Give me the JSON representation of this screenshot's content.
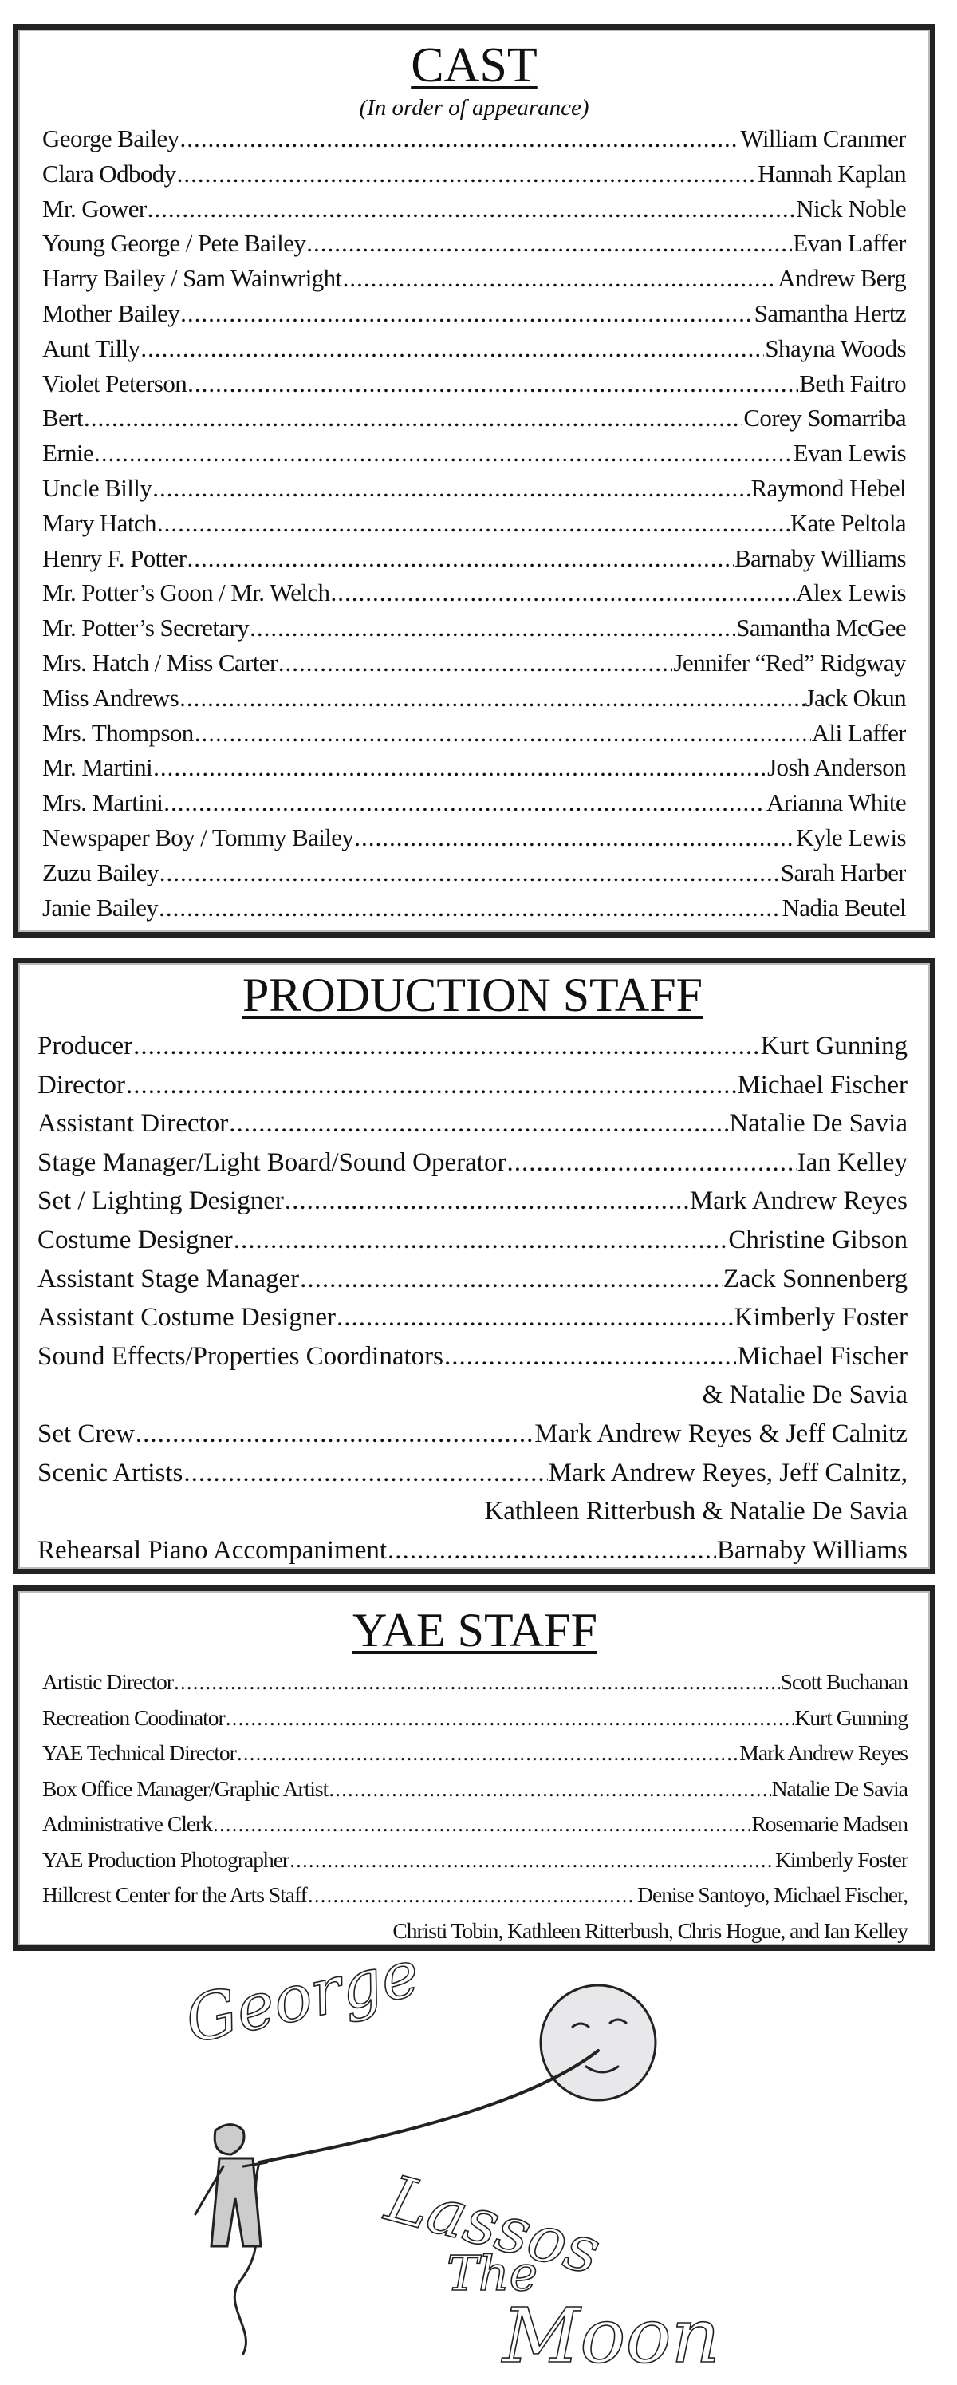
{
  "cast": {
    "title": "CAST",
    "subtitle": "(In order of appearance)",
    "rows": [
      {
        "role": "George Bailey",
        "actor": "William Cranmer"
      },
      {
        "role": "Clara Odbody",
        "actor": "Hannah Kaplan"
      },
      {
        "role": "Mr. Gower",
        "actor": "Nick Noble"
      },
      {
        "role": "Young George / Pete Bailey",
        "actor": "Evan Laffer"
      },
      {
        "role": "Harry Bailey / Sam Wainwright",
        "actor": "Andrew Berg"
      },
      {
        "role": "Mother Bailey",
        "actor": "Samantha Hertz"
      },
      {
        "role": "Aunt Tilly",
        "actor": "Shayna Woods"
      },
      {
        "role": "Violet Peterson",
        "actor": "Beth Faitro"
      },
      {
        "role": "Bert",
        "actor": "Corey Somarriba"
      },
      {
        "role": "Ernie",
        "actor": "Evan Lewis"
      },
      {
        "role": "Uncle Billy",
        "actor": "Raymond Hebel"
      },
      {
        "role": "Mary Hatch",
        "actor": "Kate Peltola"
      },
      {
        "role": "Henry F. Potter",
        "actor": "Barnaby Williams"
      },
      {
        "role": "Mr. Potter’s Goon / Mr. Welch",
        "actor": "Alex Lewis"
      },
      {
        "role": "Mr. Potter’s Secretary",
        "actor": "Samantha McGee"
      },
      {
        "role": "Mrs. Hatch / Miss Carter",
        "actor": "Jennifer “Red” Ridgway"
      },
      {
        "role": "Miss Andrews",
        "actor": "Jack Okun"
      },
      {
        "role": "Mrs. Thompson",
        "actor": "Ali Laffer"
      },
      {
        "role": "Mr. Martini",
        "actor": "Josh Anderson"
      },
      {
        "role": "Mrs. Martini",
        "actor": "Arianna White"
      },
      {
        "role": "Newspaper Boy / Tommy Bailey",
        "actor": "Kyle Lewis"
      },
      {
        "role": "Zuzu Bailey",
        "actor": "Sarah Harber"
      },
      {
        "role": "Janie Bailey",
        "actor": "Nadia Beutel"
      }
    ]
  },
  "production_staff": {
    "title": "PRODUCTION STAFF",
    "rows": [
      {
        "role": "Producer",
        "actor": "Kurt Gunning"
      },
      {
        "role": "Director",
        "actor": "Michael Fischer"
      },
      {
        "role": "Assistant Director",
        "actor": "Natalie De Savia"
      },
      {
        "role": "Stage Manager/Light Board/Sound Operator",
        "actor": "Ian Kelley"
      },
      {
        "role": "Set / Lighting Designer",
        "actor": "Mark Andrew Reyes"
      },
      {
        "role": "Costume Designer",
        "actor": "Christine Gibson"
      },
      {
        "role": "Assistant Stage Manager",
        "actor": "Zack Sonnenberg"
      },
      {
        "role": "Assistant Costume Designer",
        "actor": "Kimberly Foster"
      },
      {
        "role": "Sound Effects/Properties Coordinators ",
        "actor": "Michael Fischer",
        "cont": "& Natalie De Savia"
      },
      {
        "role": "Set Crew",
        "actor": "Mark Andrew Reyes & Jeff Calnitz"
      },
      {
        "role": "Scenic Artists",
        "actor": "Mark Andrew Reyes, Jeff Calnitz,",
        "cont": "Kathleen Ritterbush & Natalie De Savia"
      },
      {
        "role": "Rehearsal Piano Accompaniment",
        "actor": "Barnaby Williams"
      }
    ]
  },
  "yae_staff": {
    "title": "YAE STAFF",
    "rows": [
      {
        "role": "Artistic Director",
        "actor": "Scott Buchanan"
      },
      {
        "role": "Recreation Coodinator",
        "actor": "Kurt Gunning"
      },
      {
        "role": "YAE Technical Director",
        "actor": "Mark Andrew Reyes"
      },
      {
        "role": "Box Office Manager/Graphic Artist",
        "actor": "Natalie De Savia"
      },
      {
        "role": "Administrative Clerk",
        "actor": "Rosemarie Madsen"
      },
      {
        "role": "YAE Production Photographer",
        "actor": "Kimberly Foster"
      },
      {
        "role": "Hillcrest Center for the Arts Staff",
        "actor": "Denise Santoyo, Michael Fischer,",
        "cont": "Christi Tobin, Kathleen Ritterbush, Chris Hogue, and Ian Kelley"
      }
    ]
  },
  "illustration": {
    "lettering": [
      "George",
      "Lassos",
      "The",
      "Moon"
    ]
  }
}
